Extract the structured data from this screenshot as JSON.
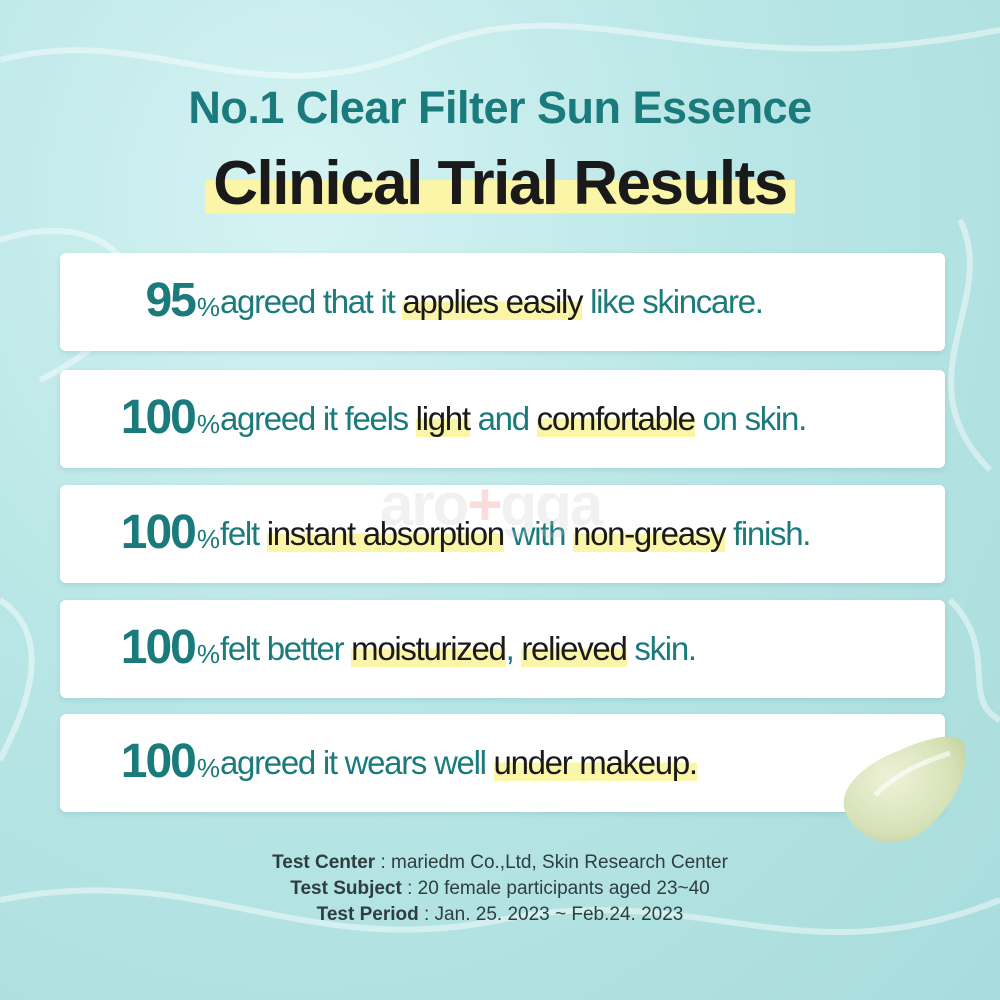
{
  "title": {
    "line1": "No.1 Clear Filter Sun Essence",
    "line2": "Clinical Trial Results"
  },
  "results": [
    {
      "value": "95",
      "unit": "%",
      "segments": [
        {
          "text": "agreed that it ",
          "hl": false
        },
        {
          "text": "applies easily",
          "hl": true
        },
        {
          "text": " like skincare.",
          "hl": false
        }
      ]
    },
    {
      "value": "100",
      "unit": "%",
      "segments": [
        {
          "text": "agreed it feels ",
          "hl": false
        },
        {
          "text": "light",
          "hl": true
        },
        {
          "text": " and ",
          "hl": false
        },
        {
          "text": "comfortable",
          "hl": true
        },
        {
          "text": " on skin.",
          "hl": false
        }
      ]
    },
    {
      "value": "100",
      "unit": "%",
      "segments": [
        {
          "text": "felt ",
          "hl": false
        },
        {
          "text": "instant absorption",
          "hl": true
        },
        {
          "text": " with ",
          "hl": false
        },
        {
          "text": "non-greasy",
          "hl": true
        },
        {
          "text": " finish.",
          "hl": false
        }
      ]
    },
    {
      "value": "100",
      "unit": "%",
      "segments": [
        {
          "text": "felt better ",
          "hl": false
        },
        {
          "text": "moisturized",
          "hl": true
        },
        {
          "text": ", ",
          "hl": false
        },
        {
          "text": "relieved",
          "hl": true
        },
        {
          "text": " skin.",
          "hl": false
        }
      ]
    },
    {
      "value": "100",
      "unit": "%",
      "segments": [
        {
          "text": "agreed it wears well ",
          "hl": false
        },
        {
          "text": "under makeup.",
          "hl": true
        }
      ]
    }
  ],
  "footer": [
    {
      "label": "Test Center",
      "value": " : mariedm Co.,Ltd, Skin Research Center"
    },
    {
      "label": "Test Subject",
      "value": " : 20 female participants aged 23~40"
    },
    {
      "label": "Test Period",
      "value": " : Jan. 25. 2023 ~ Feb.24. 2023"
    }
  ],
  "watermark": "arogga",
  "colors": {
    "teal": "#1b7a7c",
    "highlight": "#fbf5a8",
    "background": "#b9e6e6"
  }
}
